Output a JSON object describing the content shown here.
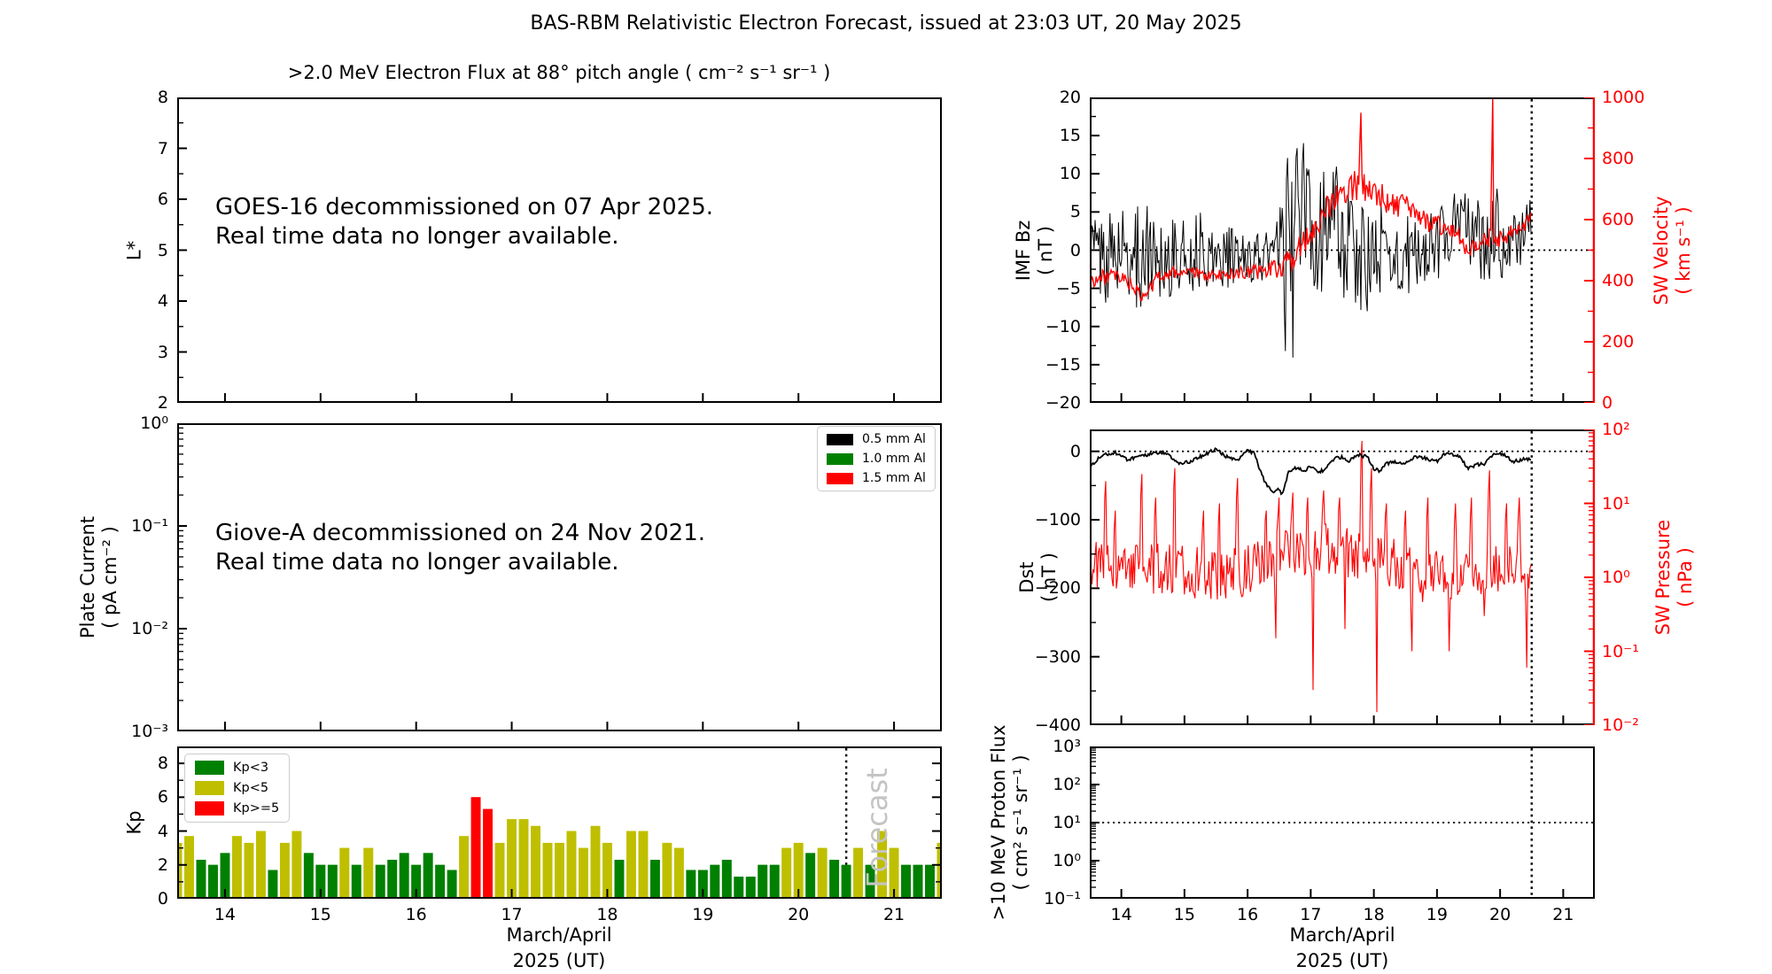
{
  "figure": {
    "title": "BAS-RBM Relativistic Electron Forecast, issued at 23:03 UT, 20 May 2025"
  },
  "colors": {
    "red": "#ff0000",
    "green": "#008000",
    "olive": "#bfbf00",
    "black": "#000000",
    "watermark_gray": "#c4c4c4"
  },
  "xaxis": {
    "label": "March/April\n2025 (UT)",
    "xlim": [
      13.5,
      21.5
    ],
    "ticks": [
      14,
      15,
      16,
      17,
      18,
      19,
      20,
      21
    ],
    "forecast_line_x": 20.5
  },
  "chart_data": [
    {
      "id": "electron-flux",
      "type": "line",
      "title": ">2.0 MeV Electron Flux at 88° pitch angle ( cm⁻² s⁻¹ sr⁻¹ )",
      "ylabel_lines": [
        "L*"
      ],
      "yscale": "linear",
      "ylim": [
        2,
        8
      ],
      "yticks": [
        {
          "v": 8,
          "t": "8"
        },
        {
          "v": 7,
          "t": "7"
        },
        {
          "v": 6,
          "t": "6"
        },
        {
          "v": 5,
          "t": "5"
        },
        {
          "v": 4,
          "t": "4"
        },
        {
          "v": 3,
          "t": "3"
        },
        {
          "v": 2,
          "t": "2"
        }
      ],
      "annotation": "GOES-16 decommissioned on 07 Apr 2025.\nReal time data no longer available.",
      "series": []
    },
    {
      "id": "plate-current",
      "type": "line",
      "ylabel_lines": [
        "Plate Current",
        "( pA cm⁻² )"
      ],
      "yscale": "log",
      "ylim": [
        0.001,
        1
      ],
      "yticks": [
        {
          "v": 1,
          "t": "10⁰"
        },
        {
          "v": 0.1,
          "t": "10⁻¹"
        },
        {
          "v": 0.01,
          "t": "10⁻²"
        },
        {
          "v": 0.001,
          "t": "10⁻³"
        }
      ],
      "legend": [
        {
          "label": "0.5 mm Al",
          "color": "#000000"
        },
        {
          "label": "1.0 mm Al",
          "color": "#008000"
        },
        {
          "label": "1.5 mm Al",
          "color": "#ff0000"
        }
      ],
      "annotation": "Giove-A decommissioned on 24 Nov 2021.\nReal time data no longer available.",
      "series": []
    },
    {
      "id": "kp",
      "type": "bar",
      "ylabel_lines": [
        "Kp"
      ],
      "yscale": "linear",
      "ylim": [
        0,
        9
      ],
      "yticks": [
        {
          "v": 8,
          "t": "8"
        },
        {
          "v": 6,
          "t": "6"
        },
        {
          "v": 4,
          "t": "4"
        },
        {
          "v": 2,
          "t": "2"
        },
        {
          "v": 0,
          "t": "0"
        }
      ],
      "legend": [
        {
          "label": "Kp<3",
          "color": "#008000"
        },
        {
          "label": "Kp<5",
          "color": "#bfbf00"
        },
        {
          "label": "Kp>=5",
          "color": "#ff0000"
        }
      ],
      "bar_start_day": 13.5,
      "bar_step_days": 0.125,
      "values": [
        3.3,
        3.7,
        2.3,
        2.0,
        2.7,
        3.7,
        3.3,
        4.0,
        1.7,
        3.3,
        4.0,
        2.7,
        2.0,
        2.0,
        3.0,
        2.0,
        3.0,
        2.0,
        2.3,
        2.7,
        2.0,
        2.7,
        2.0,
        1.7,
        3.7,
        6.0,
        5.3,
        3.3,
        4.7,
        4.7,
        4.3,
        3.3,
        3.3,
        4.0,
        3.0,
        4.3,
        3.3,
        2.3,
        4.0,
        4.0,
        2.3,
        3.3,
        3.0,
        1.7,
        1.7,
        2.0,
        2.3,
        1.3,
        1.3,
        2.0,
        2.0,
        3.0,
        3.3,
        2.7,
        3.0,
        2.3,
        2.0,
        3.0,
        2.0,
        4.0,
        3.0,
        2.0,
        2.0,
        2.0,
        3.3
      ],
      "forecast_x": 20.5,
      "watermark": "Forecast",
      "xlabel_shown": true
    },
    {
      "id": "imf-bz",
      "type": "line",
      "ylabel_lines": [
        "IMF Bz",
        "( nT )"
      ],
      "yscale": "linear",
      "ylim": [
        -20,
        20
      ],
      "yticks": [
        {
          "v": 20,
          "t": "20"
        },
        {
          "v": 15,
          "t": "15"
        },
        {
          "v": 10,
          "t": "10"
        },
        {
          "v": 5,
          "t": "5"
        },
        {
          "v": 0,
          "t": "0"
        },
        {
          "v": -5,
          "t": "−5"
        },
        {
          "v": -10,
          "t": "−10"
        },
        {
          "v": -15,
          "t": "−15"
        },
        {
          "v": -20,
          "t": "−20"
        }
      ],
      "right_axis": {
        "label_lines": [
          "SW Velocity",
          "( km s⁻¹ )"
        ],
        "color": "#ff0000",
        "yscale": "linear",
        "ylim": [
          0,
          1000
        ],
        "yticks": [
          {
            "v": 1000,
            "t": "1000"
          },
          {
            "v": 800,
            "t": "800"
          },
          {
            "v": 600,
            "t": "600"
          },
          {
            "v": 400,
            "t": "400"
          },
          {
            "v": 200,
            "t": "200"
          },
          {
            "v": 0,
            "t": "0"
          }
        ]
      },
      "hline": {
        "axis": "left",
        "v": 0
      },
      "forecast_x": 20.5,
      "series": [
        {
          "name": "imf-bz",
          "color": "#000000",
          "axis": "left",
          "x": [
            13.5,
            13.75,
            14,
            14.25,
            14.5,
            14.75,
            15,
            15.25,
            15.5,
            15.75,
            16,
            16.25,
            16.45,
            16.6,
            16.7,
            16.8,
            16.9,
            17,
            17.1,
            17.2,
            17.3,
            17.4,
            17.5,
            17.6,
            17.7,
            17.8,
            17.9,
            18,
            18.2,
            18.4,
            18.6,
            18.8,
            19,
            19.2,
            19.4,
            19.6,
            19.8,
            19.9,
            20,
            20.2,
            20.35,
            20.5
          ],
          "y": [
            0,
            -1,
            0,
            -1,
            0,
            -1,
            -1,
            0,
            -1,
            -1,
            -1,
            -1,
            0,
            -1,
            0,
            4,
            6,
            2,
            0,
            3,
            6,
            4,
            1,
            0,
            -2,
            0,
            -2,
            -1,
            0,
            -2,
            -1,
            0,
            1,
            3,
            4,
            2,
            1,
            2,
            1,
            1,
            2,
            2
          ],
          "amp": [
            6,
            6,
            6,
            7,
            6,
            6,
            5,
            5,
            4,
            4,
            3,
            4,
            3,
            13,
            16,
            10,
            9,
            8,
            7,
            8,
            7,
            8,
            7,
            8,
            8,
            9,
            7,
            7,
            6,
            6,
            6,
            5,
            5,
            5,
            5,
            5,
            6,
            9,
            5,
            4,
            4,
            5
          ]
        },
        {
          "name": "sw-velocity",
          "color": "#ff0000",
          "axis": "right",
          "x": [
            13.5,
            13.8,
            14.1,
            14.35,
            14.6,
            15,
            15.4,
            15.8,
            16.2,
            16.5,
            16.7,
            16.9,
            17.1,
            17.3,
            17.5,
            17.7,
            17.8,
            17.9,
            18.1,
            18.3,
            18.5,
            18.7,
            18.9,
            19.1,
            19.3,
            19.5,
            19.7,
            19.85,
            20,
            20.2,
            20.35,
            20.5
          ],
          "y": [
            400,
            415,
            400,
            340,
            420,
            430,
            415,
            425,
            430,
            440,
            470,
            530,
            590,
            650,
            690,
            720,
            700,
            710,
            680,
            650,
            640,
            610,
            590,
            580,
            560,
            500,
            520,
            545,
            540,
            560,
            580,
            610
          ],
          "amp": [
            25,
            25,
            25,
            20,
            25,
            20,
            20,
            20,
            25,
            30,
            40,
            40,
            45,
            45,
            45,
            55,
            50,
            45,
            45,
            40,
            40,
            35,
            35,
            35,
            30,
            30,
            30,
            30,
            30,
            25,
            25,
            25
          ],
          "spikes": [
            [
              17.79,
              950
            ],
            [
              19.88,
              1000
            ]
          ]
        }
      ]
    },
    {
      "id": "dst",
      "type": "line",
      "ylabel_lines": [
        "Dst",
        "( nT )"
      ],
      "yscale": "linear",
      "ylim": [
        -400,
        32
      ],
      "yticks": [
        {
          "v": 0,
          "t": "0"
        },
        {
          "v": -100,
          "t": "−100"
        },
        {
          "v": -200,
          "t": "−200"
        },
        {
          "v": -300,
          "t": "−300"
        },
        {
          "v": -400,
          "t": "−400"
        }
      ],
      "right_axis": {
        "label_lines": [
          "SW Pressure",
          "( nPa )"
        ],
        "color": "#ff0000",
        "yscale": "log",
        "ylim": [
          0.01,
          100
        ],
        "yticks": [
          {
            "v": 100,
            "t": "10²"
          },
          {
            "v": 10,
            "t": "10¹"
          },
          {
            "v": 1,
            "t": "10⁰"
          },
          {
            "v": 0.1,
            "t": "10⁻¹"
          },
          {
            "v": 0.01,
            "t": "10⁻²"
          }
        ]
      },
      "hline": {
        "axis": "left",
        "v": 0
      },
      "forecast_x": 20.5,
      "series": [
        {
          "name": "sw-pressure",
          "color": "#ff0000",
          "axis": "right",
          "x": [
            13.5,
            14,
            14.5,
            15,
            15.5,
            16,
            16.4,
            16.8,
            17.2,
            17.6,
            18,
            18.4,
            18.8,
            19.2,
            19.6,
            20,
            20.5
          ],
          "y": [
            1.5,
            1.4,
            1.3,
            1.2,
            1.1,
            1.2,
            2,
            2.2,
            2.5,
            2.2,
            1.8,
            1.5,
            1,
            1.1,
            1.2,
            1.4,
            1.4
          ],
          "logamp": 0.35,
          "spikes": [
            [
              13.76,
              20
            ],
            [
              13.9,
              8
            ],
            [
              14.33,
              25
            ],
            [
              14.55,
              12
            ],
            [
              14.85,
              30
            ],
            [
              15.3,
              8
            ],
            [
              15.55,
              10
            ],
            [
              15.84,
              22
            ],
            [
              16.3,
              8
            ],
            [
              16.5,
              12
            ],
            [
              16.72,
              14
            ],
            [
              16.95,
              12
            ],
            [
              17.2,
              15
            ],
            [
              17.45,
              12
            ],
            [
              17.81,
              70
            ],
            [
              17.97,
              30
            ],
            [
              18.2,
              10
            ],
            [
              18.5,
              8
            ],
            [
              18.85,
              12
            ],
            [
              19.3,
              10
            ],
            [
              19.55,
              12
            ],
            [
              19.84,
              28
            ],
            [
              20.1,
              10
            ],
            [
              20.3,
              12
            ],
            [
              16.45,
              0.15
            ],
            [
              17.03,
              0.03
            ],
            [
              17.55,
              0.2
            ],
            [
              18.05,
              0.015
            ],
            [
              18.6,
              0.1
            ],
            [
              19.2,
              0.1
            ],
            [
              19.75,
              0.3
            ],
            [
              20.42,
              0.06
            ]
          ]
        },
        {
          "name": "dst",
          "color": "#000000",
          "axis": "left",
          "x": [
            13.5,
            13.7,
            13.9,
            14.1,
            14.3,
            14.5,
            14.7,
            14.9,
            15.1,
            15.3,
            15.5,
            15.7,
            15.85,
            16,
            16.1,
            16.25,
            16.4,
            16.5,
            16.55,
            16.65,
            16.75,
            16.9,
            17,
            17.1,
            17.2,
            17.35,
            17.5,
            17.6,
            17.75,
            17.9,
            18,
            18.1,
            18.2,
            18.35,
            18.5,
            18.65,
            18.8,
            19,
            19.1,
            19.2,
            19.35,
            19.5,
            19.6,
            19.75,
            19.9,
            20,
            20.1,
            20.2,
            20.35,
            20.5
          ],
          "y": [
            -22,
            -5,
            -2,
            -12,
            -8,
            -3,
            -2,
            -18,
            -15,
            -5,
            3,
            -10,
            -14,
            2,
            -3,
            -40,
            -62,
            -55,
            -63,
            -30,
            -25,
            -28,
            -22,
            -30,
            -28,
            -12,
            -8,
            -15,
            -5,
            -8,
            -25,
            -30,
            -18,
            -15,
            -18,
            -8,
            -10,
            -15,
            -5,
            -3,
            -8,
            -25,
            -20,
            -18,
            -3,
            -2,
            -8,
            -15,
            -12,
            -10
          ],
          "ampc": 2.5
        }
      ]
    },
    {
      "id": "proton",
      "type": "line",
      "ylabel_lines": [
        ">10 MeV Proton Flux",
        "( cm² s⁻¹ sr⁻¹ )"
      ],
      "yscale": "log",
      "ylim": [
        0.1,
        1000
      ],
      "yticks": [
        {
          "v": 1000,
          "t": "10³"
        },
        {
          "v": 100,
          "t": "10²"
        },
        {
          "v": 10,
          "t": "10¹"
        },
        {
          "v": 1,
          "t": "10⁰"
        },
        {
          "v": 0.1,
          "t": "10⁻¹"
        }
      ],
      "hline": {
        "axis": "left",
        "v": 10
      },
      "forecast_x": 20.5,
      "xlabel_shown": true,
      "series": []
    }
  ]
}
